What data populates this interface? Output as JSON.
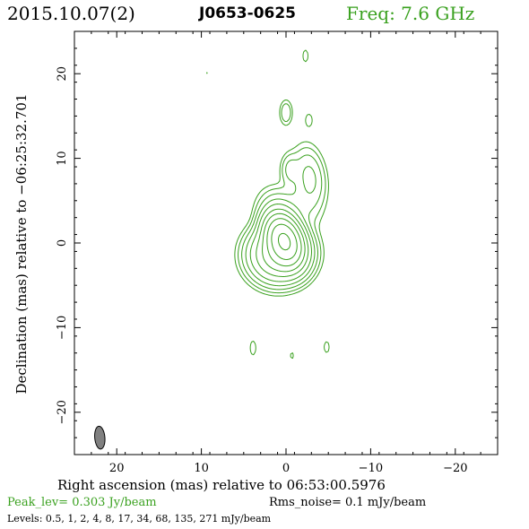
{
  "header": {
    "date": "2015.10.07(2)",
    "source": "J0653-0625",
    "freq": "Freq: 7.6 GHz"
  },
  "footer": {
    "peak": "Peak_lev=  0.303 Jy/beam",
    "rms": "Rms_noise=  0.1 mJy/beam",
    "levels": "Levels: 0.5,   1,   2,   4,   8,  17,  34,  68, 135, 271 mJy/beam"
  },
  "colors": {
    "contour": "#3aa11f",
    "beam": "#808080",
    "text_accent": "#3aa11f"
  },
  "chart_data": {
    "type": "contour",
    "title": "",
    "xlabel": "Right ascension (mas) relative to 06:53:00.5976",
    "ylabel": "Declination (mas) relative to −06:25:32.701",
    "xlim": [
      25,
      -25
    ],
    "ylim": [
      -25,
      25
    ],
    "x_ticks": [
      20,
      10,
      0,
      -10,
      -20
    ],
    "y_ticks": [
      20,
      10,
      0,
      -10,
      -20
    ],
    "x_tick_labels": [
      "20",
      "10",
      "0",
      "−10",
      "−20"
    ],
    "y_tick_labels": [
      "20",
      "10",
      "0",
      "−10",
      "−20"
    ],
    "beam": {
      "x": 22,
      "y": -23,
      "major_mas": 2.7,
      "minor_mas": 1.2,
      "pa_deg": -5
    },
    "levels_mJy": [
      0.5,
      1,
      2,
      4,
      8,
      17,
      34,
      68,
      135,
      271
    ],
    "peak_Jy_per_beam": 0.303,
    "rms_mJy_per_beam": 0.1,
    "components": [
      {
        "x": 0.2,
        "y": 0.3,
        "sx": 1.0,
        "sy": 1.5,
        "peak_mJy": 295,
        "pa": 20
      },
      {
        "x": 0.8,
        "y": -1.3,
        "sx": 1.7,
        "sy": 1.6,
        "peak_mJy": 60,
        "pa": 10
      },
      {
        "x": 0.6,
        "y": 3.2,
        "sx": 1.3,
        "sy": 1.7,
        "peak_mJy": 6,
        "pa": 25
      },
      {
        "x": -2.8,
        "y": 7.7,
        "sx": 1.0,
        "sy": 2.0,
        "peak_mJy": 5,
        "pa": 8
      },
      {
        "x": -1.9,
        "y": 4.5,
        "sx": 1.2,
        "sy": 1.7,
        "peak_mJy": 1.6,
        "pa": 20
      },
      {
        "x": -0.5,
        "y": 8.7,
        "sx": 0.65,
        "sy": 1.1,
        "peak_mJy": 2.6,
        "pa": 0
      },
      {
        "x": 0.0,
        "y": 15.4,
        "sx": 0.45,
        "sy": 0.9,
        "peak_mJy": 2.0,
        "pa": 0
      },
      {
        "x": -2.7,
        "y": 14.5,
        "sx": 0.35,
        "sy": 0.65,
        "peak_mJy": 0.9,
        "pa": 0
      },
      {
        "x": -2.3,
        "y": 22.1,
        "sx": 0.3,
        "sy": 0.7,
        "peak_mJy": 0.8,
        "pa": 0
      },
      {
        "x": 9.3,
        "y": 20.1,
        "sx": 0.1,
        "sy": 0.2,
        "peak_mJy": 0.6,
        "pa": 0
      },
      {
        "x": 3.9,
        "y": -12.4,
        "sx": 0.3,
        "sy": 0.75,
        "peak_mJy": 0.9,
        "pa": 0
      },
      {
        "x": -0.7,
        "y": -13.3,
        "sx": 0.2,
        "sy": 0.45,
        "peak_mJy": 0.7,
        "pa": 0
      },
      {
        "x": -4.8,
        "y": -12.3,
        "sx": 0.3,
        "sy": 0.65,
        "peak_mJy": 0.8,
        "pa": 0
      }
    ]
  }
}
